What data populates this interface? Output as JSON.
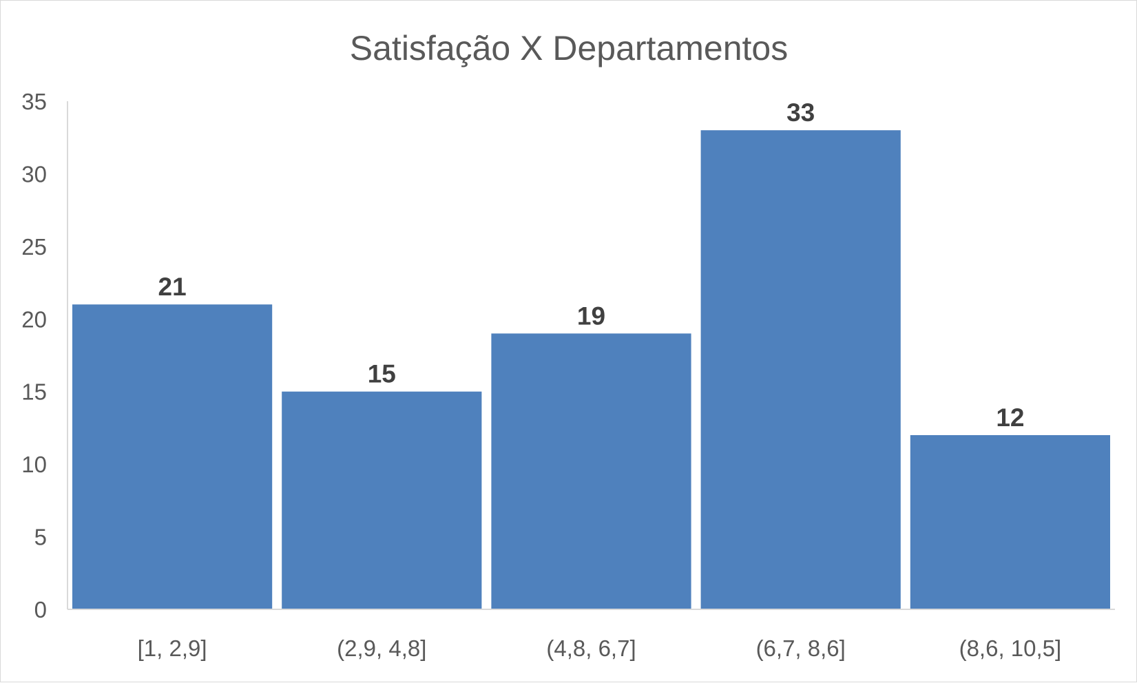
{
  "chart_data": {
    "type": "bar",
    "title": "Satisfação X Departamentos",
    "xlabel": "",
    "ylabel": "",
    "categories": [
      "[1, 2,9]",
      "(2,9, 4,8]",
      "(4,8, 6,7]",
      "(6,7, 8,6]",
      "(8,6, 10,5]"
    ],
    "values": [
      21,
      15,
      19,
      33,
      12
    ],
    "ylim": [
      0,
      35
    ],
    "yticks": [
      "0",
      "5",
      "10",
      "15",
      "20",
      "25",
      "30",
      "35"
    ],
    "grid": false,
    "legend": "none",
    "data_labels": [
      "21",
      "15",
      "19",
      "33",
      "12"
    ],
    "colors": {
      "bar": "#4f81bd",
      "axis": "#d9d9d9",
      "text": "#595959",
      "data_label": "#404040"
    }
  }
}
